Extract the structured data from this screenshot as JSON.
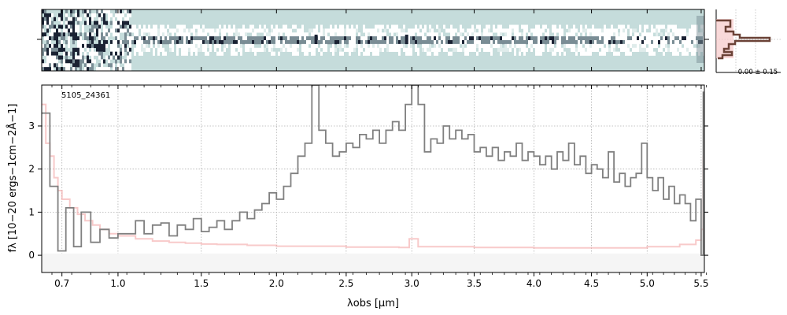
{
  "chart_data": [
    {
      "type": "heatmap",
      "panel": "2d-spectrum",
      "colormap": [
        "#c5dcdb",
        "#ffffff",
        "#7a8d95",
        "#1a2233"
      ],
      "xlim_um": [
        0.6,
        5.53
      ],
      "trace_features_um": [
        2.28,
        2.96
      ],
      "trace_gradient_um": [
        0.9,
        4.6
      ]
    },
    {
      "type": "line",
      "panel": "spatial-profile",
      "profile_color": "#6b4237",
      "band_color": "#f2b4b4",
      "annotation": "0.00 ± 0.15"
    },
    {
      "type": "line",
      "panel": "1d-spectrum",
      "label": "5105_24361",
      "xlabel": "λobs [μm]",
      "ylabel": "fλ [10−20 ergs−1cm−2Å−1]",
      "ylim": [
        -0.4,
        3.95
      ],
      "xlim": [
        0.6,
        5.53
      ],
      "xticks": [
        0.7,
        1.0,
        1.5,
        2.0,
        2.5,
        3.0,
        3.5,
        4.0,
        4.5,
        5.0,
        5.5
      ],
      "xtick_labels": [
        "0.7",
        "1.0",
        "1.5",
        "2.0",
        "2.5",
        "3.0",
        "3.5",
        "4.0",
        "4.5",
        "5.0",
        "5.5"
      ],
      "yticks": [
        0,
        1,
        2,
        3
      ],
      "ytick_labels": [
        "0",
        "1",
        "2",
        "3"
      ],
      "grid": true,
      "series": [
        {
          "role": "flux",
          "color": "#808080",
          "points": [
            [
              0.6,
              3.3
            ],
            [
              0.64,
              1.6
            ],
            [
              0.68,
              0.1
            ],
            [
              0.72,
              1.1
            ],
            [
              0.76,
              0.2
            ],
            [
              0.8,
              1.0
            ],
            [
              0.85,
              0.3
            ],
            [
              0.9,
              0.6
            ],
            [
              0.95,
              0.4
            ],
            [
              1.0,
              0.5
            ],
            [
              1.05,
              0.5
            ],
            [
              1.1,
              0.8
            ],
            [
              1.15,
              0.5
            ],
            [
              1.2,
              0.7
            ],
            [
              1.25,
              0.75
            ],
            [
              1.3,
              0.45
            ],
            [
              1.35,
              0.7
            ],
            [
              1.4,
              0.6
            ],
            [
              1.45,
              0.85
            ],
            [
              1.5,
              0.55
            ],
            [
              1.55,
              0.65
            ],
            [
              1.6,
              0.8
            ],
            [
              1.65,
              0.6
            ],
            [
              1.7,
              0.8
            ],
            [
              1.75,
              1.0
            ],
            [
              1.8,
              0.85
            ],
            [
              1.85,
              1.05
            ],
            [
              1.9,
              1.2
            ],
            [
              1.95,
              1.45
            ],
            [
              2.0,
              1.3
            ],
            [
              2.05,
              1.6
            ],
            [
              2.1,
              1.9
            ],
            [
              2.15,
              2.3
            ],
            [
              2.2,
              2.6
            ],
            [
              2.25,
              3.95
            ],
            [
              2.3,
              2.9
            ],
            [
              2.35,
              2.6
            ],
            [
              2.4,
              2.3
            ],
            [
              2.45,
              2.4
            ],
            [
              2.5,
              2.6
            ],
            [
              2.55,
              2.5
            ],
            [
              2.6,
              2.8
            ],
            [
              2.65,
              2.7
            ],
            [
              2.7,
              2.9
            ],
            [
              2.75,
              2.6
            ],
            [
              2.8,
              2.9
            ],
            [
              2.85,
              3.1
            ],
            [
              2.9,
              2.9
            ],
            [
              2.95,
              3.5
            ],
            [
              3.0,
              3.95
            ],
            [
              3.05,
              3.5
            ],
            [
              3.1,
              2.4
            ],
            [
              3.15,
              2.7
            ],
            [
              3.2,
              2.6
            ],
            [
              3.25,
              3.0
            ],
            [
              3.3,
              2.7
            ],
            [
              3.35,
              2.9
            ],
            [
              3.4,
              2.7
            ],
            [
              3.45,
              2.8
            ],
            [
              3.5,
              2.4
            ],
            [
              3.55,
              2.5
            ],
            [
              3.6,
              2.3
            ],
            [
              3.65,
              2.5
            ],
            [
              3.7,
              2.2
            ],
            [
              3.75,
              2.4
            ],
            [
              3.8,
              2.3
            ],
            [
              3.85,
              2.6
            ],
            [
              3.9,
              2.2
            ],
            [
              3.95,
              2.4
            ],
            [
              4.0,
              2.3
            ],
            [
              4.05,
              2.1
            ],
            [
              4.1,
              2.3
            ],
            [
              4.15,
              2.0
            ],
            [
              4.2,
              2.4
            ],
            [
              4.25,
              2.2
            ],
            [
              4.3,
              2.6
            ],
            [
              4.35,
              2.1
            ],
            [
              4.4,
              2.3
            ],
            [
              4.45,
              1.9
            ],
            [
              4.5,
              2.1
            ],
            [
              4.55,
              2.0
            ],
            [
              4.6,
              1.8
            ],
            [
              4.65,
              2.4
            ],
            [
              4.7,
              1.7
            ],
            [
              4.75,
              1.9
            ],
            [
              4.8,
              1.6
            ],
            [
              4.85,
              1.8
            ],
            [
              4.9,
              1.9
            ],
            [
              4.95,
              2.6
            ],
            [
              5.0,
              1.8
            ],
            [
              5.05,
              1.5
            ],
            [
              5.1,
              1.8
            ],
            [
              5.15,
              1.3
            ],
            [
              5.2,
              1.6
            ],
            [
              5.25,
              1.2
            ],
            [
              5.3,
              1.4
            ],
            [
              5.35,
              1.2
            ],
            [
              5.4,
              0.8
            ],
            [
              5.45,
              1.3
            ],
            [
              5.5,
              0.0
            ],
            [
              5.52,
              3.8
            ]
          ]
        },
        {
          "role": "uncertainty",
          "color": "#f4a6a6",
          "points": [
            [
              0.6,
              3.5
            ],
            [
              0.62,
              2.6
            ],
            [
              0.64,
              2.3
            ],
            [
              0.66,
              1.8
            ],
            [
              0.68,
              1.5
            ],
            [
              0.7,
              1.3
            ],
            [
              0.74,
              1.1
            ],
            [
              0.78,
              0.95
            ],
            [
              0.82,
              0.8
            ],
            [
              0.86,
              0.7
            ],
            [
              0.9,
              0.6
            ],
            [
              0.95,
              0.5
            ],
            [
              1.0,
              0.45
            ],
            [
              1.1,
              0.38
            ],
            [
              1.2,
              0.33
            ],
            [
              1.3,
              0.3
            ],
            [
              1.4,
              0.28
            ],
            [
              1.5,
              0.26
            ],
            [
              1.6,
              0.25
            ],
            [
              1.8,
              0.23
            ],
            [
              2.0,
              0.21
            ],
            [
              2.5,
              0.19
            ],
            [
              2.9,
              0.18
            ],
            [
              2.98,
              0.38
            ],
            [
              3.05,
              0.2
            ],
            [
              3.5,
              0.18
            ],
            [
              4.0,
              0.17
            ],
            [
              4.5,
              0.17
            ],
            [
              5.0,
              0.2
            ],
            [
              5.3,
              0.25
            ],
            [
              5.45,
              0.35
            ],
            [
              5.5,
              0.6
            ],
            [
              5.52,
              2.3
            ]
          ]
        }
      ]
    }
  ]
}
